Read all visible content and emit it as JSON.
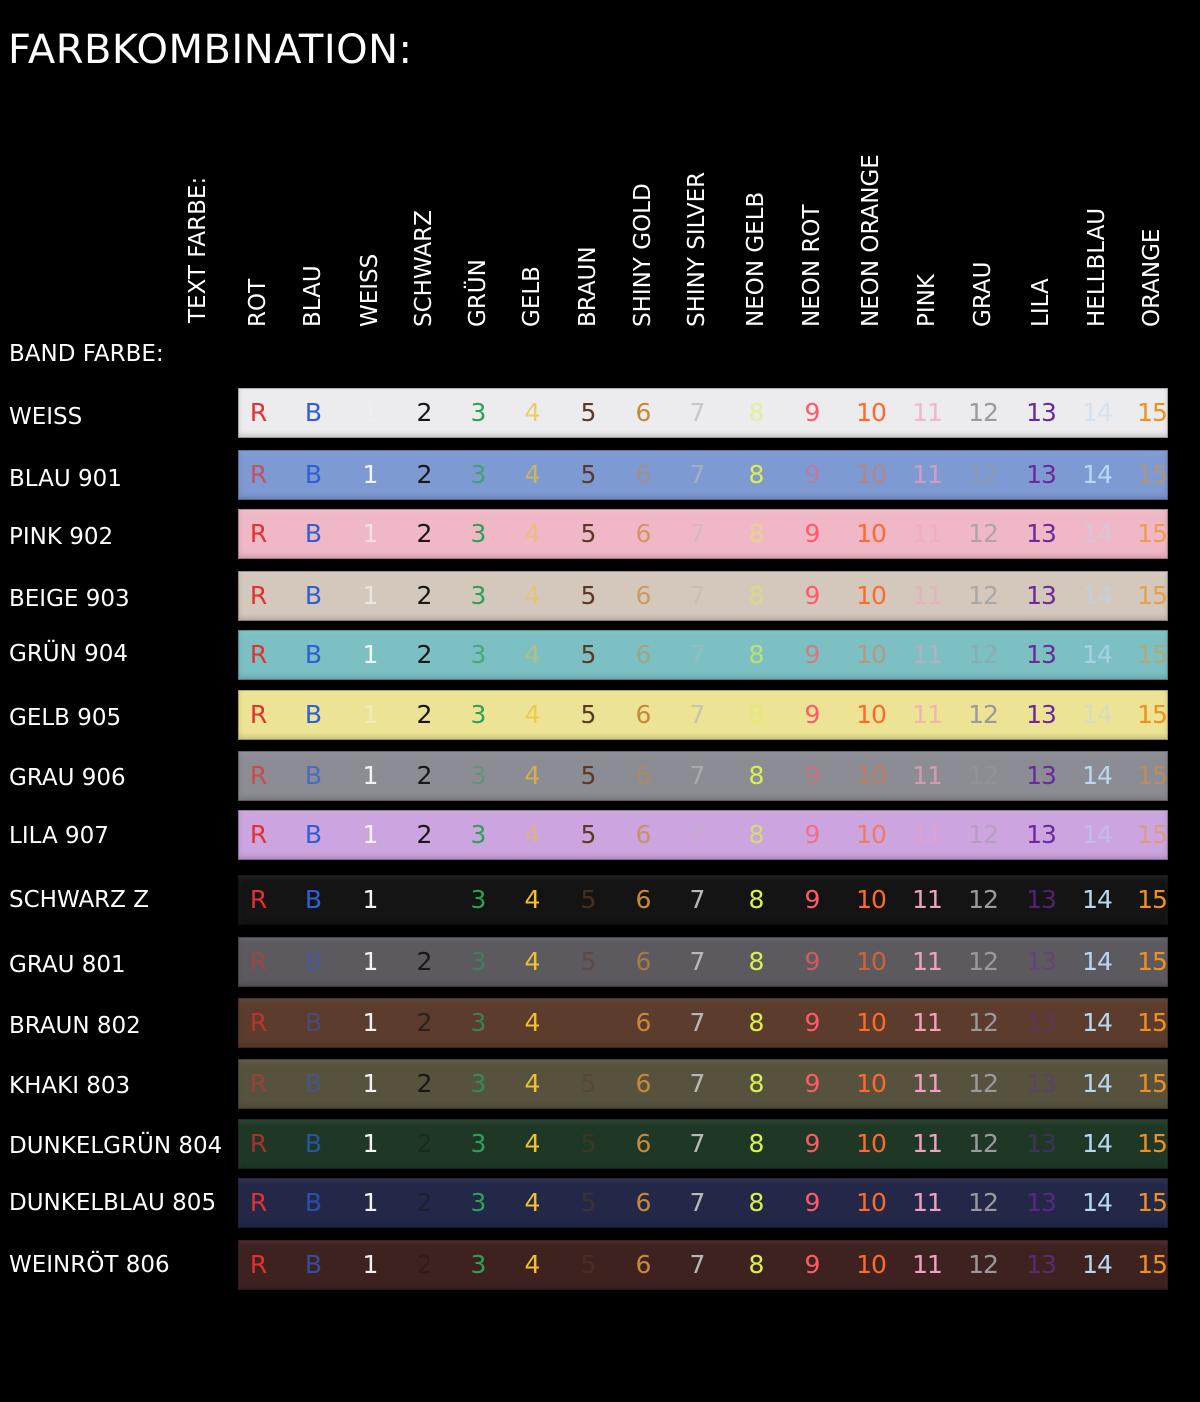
{
  "title": "FARBKOMBINATION:",
  "text_farbe_label": "TEXT FARBE:",
  "band_farbe_label": "BAND FARBE:",
  "text_colors": [
    {
      "name": "ROT",
      "symbol": "R",
      "color": "#e53030"
    },
    {
      "name": "BLAU",
      "symbol": "B",
      "color": "#2f5fd6"
    },
    {
      "name": "WEISS",
      "symbol": "1",
      "color": "#f2f2f2"
    },
    {
      "name": "SCHWARZ",
      "symbol": "2",
      "color": "#181818"
    },
    {
      "name": "GRÜN",
      "symbol": "3",
      "color": "#2ea05a"
    },
    {
      "name": "GELB",
      "symbol": "4",
      "color": "#f0c030"
    },
    {
      "name": "BRAUN",
      "symbol": "5",
      "color": "#5a3a26"
    },
    {
      "name": "SHINY GOLD",
      "symbol": "6",
      "color": "#c8883a"
    },
    {
      "name": "SHINY SILVER",
      "symbol": "7",
      "color": "#b8b8b8"
    },
    {
      "name": "NEON GELB",
      "symbol": "8",
      "color": "#d8f050"
    },
    {
      "name": "NEON ROT",
      "symbol": "9",
      "color": "#ff5a6a"
    },
    {
      "name": "NEON ORANGE",
      "symbol": "10",
      "color": "#ff6a2a"
    },
    {
      "name": "PINK",
      "symbol": "11",
      "color": "#f2a0c0"
    },
    {
      "name": "GRAU",
      "symbol": "12",
      "color": "#9a9a9a"
    },
    {
      "name": "LILA",
      "symbol": "13",
      "color": "#6a2a9a"
    },
    {
      "name": "HELLBLAU",
      "symbol": "14",
      "color": "#b8d8f2"
    },
    {
      "name": "ORANGE",
      "symbol": "15",
      "color": "#f09020"
    }
  ],
  "bands": [
    {
      "label": "WEISS",
      "color": "#ececef"
    },
    {
      "label": "BLAU 901",
      "color": "#7e9ad2"
    },
    {
      "label": "PINK 902",
      "color": "#f0b8c6"
    },
    {
      "label": "BEIGE 903",
      "color": "#d4c8bc"
    },
    {
      "label": "GRÜN 904",
      "color": "#7cc0c4"
    },
    {
      "label": "GELB 905",
      "color": "#ece494"
    },
    {
      "label": "GRAU 906",
      "color": "#8c8c94"
    },
    {
      "label": "LILA 907",
      "color": "#cca4e0"
    },
    {
      "label": "SCHWARZ Z",
      "color": "#141414"
    },
    {
      "label": "GRAU 801",
      "color": "#5c5a5e"
    },
    {
      "label": "BRAUN 802",
      "color": "#5c3c2c"
    },
    {
      "label": "KHAKI 803",
      "color": "#57523e"
    },
    {
      "label": "DUNKELGRÜN 804",
      "color": "#1f3826"
    },
    {
      "label": "DUNKELBLAU 805",
      "color": "#242848"
    },
    {
      "label": "WEINRÖT 806",
      "color": "#3e2220"
    }
  ]
}
